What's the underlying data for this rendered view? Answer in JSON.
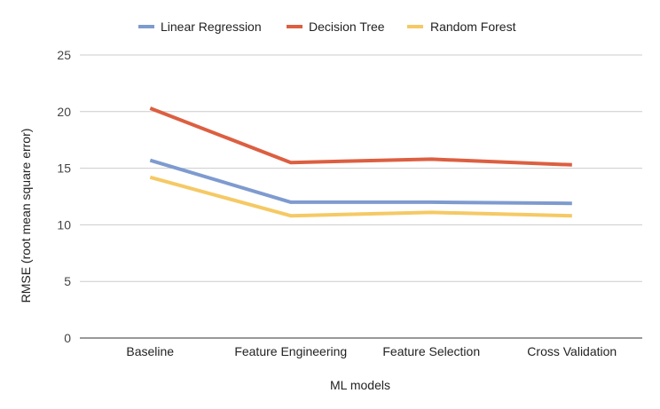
{
  "chart_data": {
    "type": "line",
    "title": "",
    "xlabel": "ML models",
    "ylabel": "RMSE (root mean square error)",
    "categories": [
      "Baseline",
      "Feature Engineering",
      "Feature Selection",
      "Cross Validation"
    ],
    "ylim": [
      0,
      25
    ],
    "yticks": [
      0,
      5,
      10,
      15,
      20,
      25
    ],
    "grid": true,
    "legend_position": "top",
    "series": [
      {
        "name": "Linear Regression",
        "color": "#7e9bcf",
        "values": [
          15.7,
          12.0,
          12.0,
          11.9
        ]
      },
      {
        "name": "Decision Tree",
        "color": "#dc5f41",
        "values": [
          20.3,
          15.5,
          15.8,
          15.3
        ]
      },
      {
        "name": "Random Forest",
        "color": "#f5c964",
        "values": [
          14.2,
          10.8,
          11.1,
          10.8
        ]
      }
    ]
  }
}
